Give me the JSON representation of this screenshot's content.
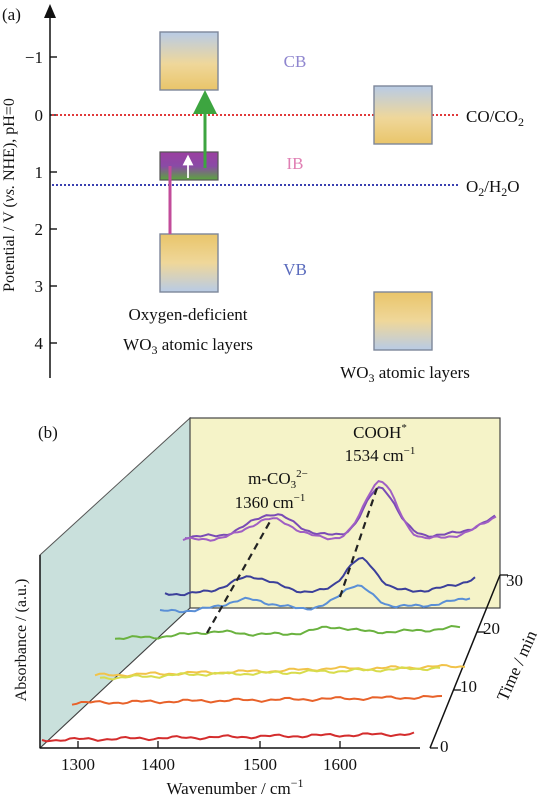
{
  "panel_a": {
    "label": "(a)",
    "ylabel": "Potential / V (vs. NHE), pH=0",
    "ylabel_parts": [
      "Potential / V (",
      "vs.",
      " NHE), pH=0"
    ],
    "yticks": [
      "−1",
      "0",
      "1",
      "2",
      "3",
      "4"
    ],
    "band_labels": {
      "cb": "CB",
      "ib": "IB",
      "vb": "VB"
    },
    "redox_labels": {
      "co_co2": "CO/CO",
      "co_co2_sub": "2",
      "o2_h2o_a": "O",
      "o2_h2o_sub1": "2",
      "o2_h2o_b": "/H",
      "o2_h2o_sub2": "2",
      "o2_h2o_c": "O"
    },
    "captions": {
      "left_line1": "Oxygen-deficient",
      "left_line2a": "WO",
      "left_line2_sub": "3",
      "left_line2b": " atomic layers",
      "right_a": "WO",
      "right_sub": "3",
      "right_b": " atomic layers"
    },
    "colors": {
      "co_line": "#e0393b",
      "o2_line": "#3a3fb0",
      "cb_text": "#8f86cf",
      "ib_text": "#e07fb3",
      "vb_text": "#5a6bbd",
      "arrow_pink": "#c24b9a",
      "arrow_green": "#3da540"
    }
  },
  "panel_b": {
    "label": "(b)",
    "xlabel": "Wavenumber / cm",
    "xlabel_sup": "−1",
    "ylabel": "Absorbance / (a.u.)",
    "zlabel": "Time / min",
    "xticks": [
      "1300",
      "1400",
      "1500",
      "1600"
    ],
    "zticks": [
      "0",
      "10",
      "20",
      "30"
    ],
    "annotations": {
      "m_co3_a": "m-CO",
      "m_co3_sub": "3",
      "m_co3_sup": "2−",
      "m_co3_wn": "1360 cm",
      "m_co3_wn_sup": "−1",
      "cooh": "COOH",
      "cooh_sup": "*",
      "cooh_wn": "1534 cm",
      "cooh_wn_sup": "−1"
    },
    "chart_data": {
      "type": "line",
      "xlabel": "Wavenumber / cm−1",
      "ylabel": "Absorbance / (a.u.)",
      "zlabel": "Time / min",
      "x_ticks": [
        1300,
        1400,
        1500,
        1600
      ],
      "z_ticks": [
        0,
        10,
        20,
        30
      ],
      "series": [
        {
          "time": 0,
          "color": "#d42d2d"
        },
        {
          "time": 5,
          "color": "#e8622a"
        },
        {
          "time": 10,
          "color": "#f1c34a"
        },
        {
          "time": 15,
          "color": "#d8dc4c"
        },
        {
          "time": 20,
          "color": "#6ab23f"
        },
        {
          "time": 22.5,
          "color": "#5a8fd6"
        },
        {
          "time": 25,
          "color": "#3b3f9a"
        },
        {
          "time": 27.5,
          "color": "#7a4bb5"
        },
        {
          "time": 30,
          "color": "#a05ec4"
        }
      ],
      "peaks": [
        1360,
        1534
      ]
    }
  }
}
